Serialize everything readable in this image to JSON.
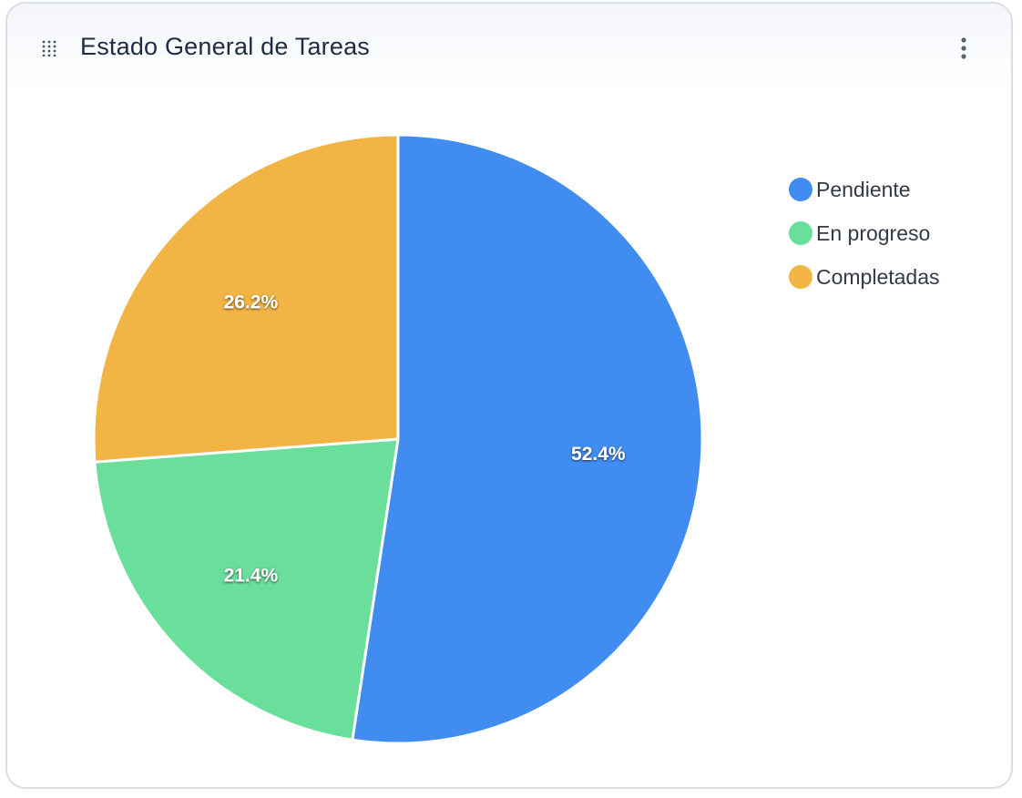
{
  "card": {
    "title": "Estado General de Tareas"
  },
  "icons": {
    "drag": "drag-handle-icon",
    "menu": "more-vertical-icon"
  },
  "chart_data": {
    "type": "pie",
    "title": "",
    "slices": [
      {
        "name": "Pendiente",
        "value": 52.4,
        "label": "52.4%",
        "color": "#418cf0"
      },
      {
        "name": "En progreso",
        "value": 21.4,
        "label": "21.4%",
        "color": "#69df9b"
      },
      {
        "name": "Completadas",
        "value": 26.2,
        "label": "26.2%",
        "color": "#f2b444"
      }
    ],
    "legend_position": "right"
  },
  "legend": {
    "items": [
      {
        "label": "Pendiente",
        "color": "#418cf0"
      },
      {
        "label": "En progreso",
        "color": "#69df9b"
      },
      {
        "label": "Completadas",
        "color": "#f2b444"
      }
    ]
  }
}
